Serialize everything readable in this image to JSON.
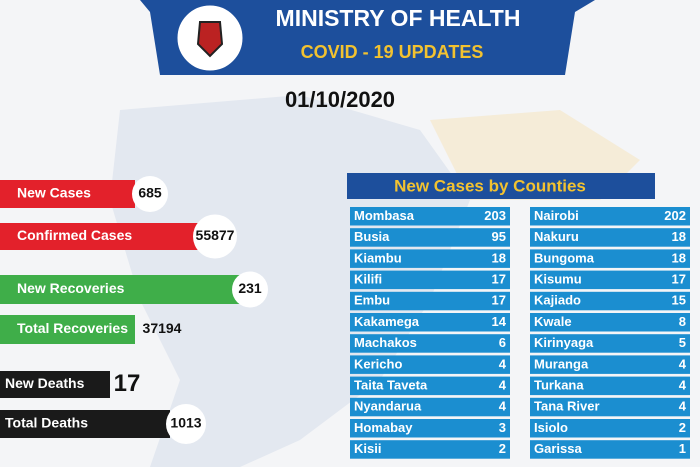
{
  "header": {
    "title": "MINISTRY OF HEALTH",
    "subtitle": "COVID - 19 UPDATES",
    "date": "01/10/2020"
  },
  "stats": [
    {
      "label": "New Cases",
      "value": "685"
    },
    {
      "label": "Confirmed Cases",
      "value": "55877"
    },
    {
      "label": "New Recoveries",
      "value": "231"
    },
    {
      "label": "Total Recoveries",
      "value": "37194"
    },
    {
      "label": "New Deaths",
      "value": "17"
    },
    {
      "label": "Total Deaths",
      "value": "1013"
    }
  ],
  "counties": {
    "title": "New Cases by Counties",
    "left": [
      [
        "Mombasa",
        "203"
      ],
      [
        "Busia",
        "95"
      ],
      [
        "Kiambu",
        "18"
      ],
      [
        "Kilifi",
        "17"
      ],
      [
        "Embu",
        "17"
      ],
      [
        "Kakamega",
        "14"
      ],
      [
        "Machakos",
        "6"
      ],
      [
        "Kericho",
        "4"
      ],
      [
        "Taita Taveta",
        "4"
      ],
      [
        "Nyandarua",
        "4"
      ],
      [
        "Homabay",
        "3"
      ],
      [
        "Kisii",
        "2"
      ]
    ],
    "right": [
      [
        "Nairobi",
        "202"
      ],
      [
        "Nakuru",
        "18"
      ],
      [
        "Bungoma",
        "18"
      ],
      [
        "Kisumu",
        "17"
      ],
      [
        "Kajiado",
        "15"
      ],
      [
        "Kwale",
        "8"
      ],
      [
        "Kirinyaga",
        "5"
      ],
      [
        "Muranga",
        "4"
      ],
      [
        "Turkana",
        "4"
      ],
      [
        "Tana River",
        "4"
      ],
      [
        "Isiolo",
        "2"
      ],
      [
        "Garissa",
        "1"
      ]
    ]
  }
}
